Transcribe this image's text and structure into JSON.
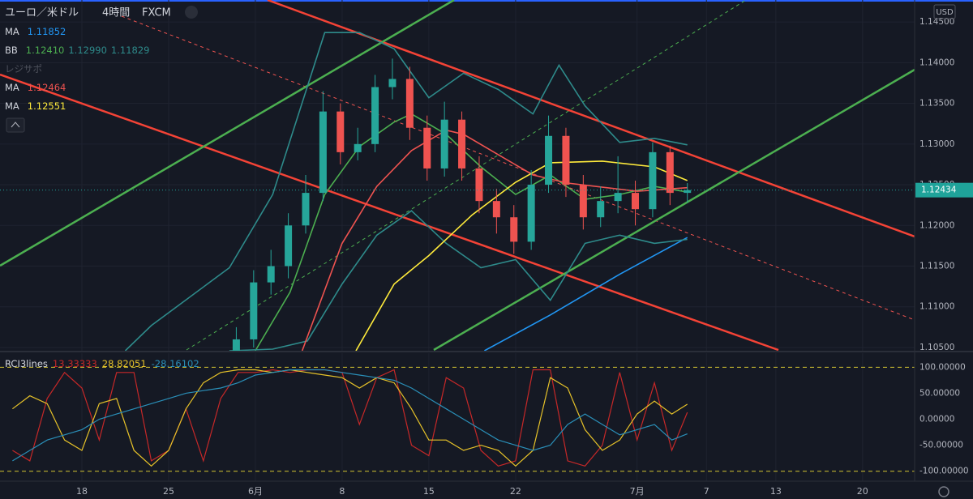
{
  "header": {
    "symbol": "ユーロ／米ドル",
    "interval": "4時間",
    "source": "FXCM",
    "currency": "USD"
  },
  "chart_data": [
    {
      "type": "candlestick",
      "xlim": [
        -4.72,
        48
      ],
      "xticks": [
        {
          "value": 0,
          "label": "18"
        },
        {
          "value": 5,
          "label": "25"
        },
        {
          "value": 10,
          "label": "6月"
        },
        {
          "value": 15,
          "label": "8"
        },
        {
          "value": 20,
          "label": "15"
        },
        {
          "value": 25,
          "label": "22"
        },
        {
          "value": 32,
          "label": "7月"
        },
        {
          "value": 36,
          "label": "7"
        },
        {
          "value": 40,
          "label": "13"
        },
        {
          "value": 45,
          "label": "20"
        }
      ],
      "ylim": [
        1.1046,
        1.1477
      ],
      "yticks": [
        {
          "value": 1.105,
          "label": "1.10500"
        },
        {
          "value": 1.11,
          "label": "1.11000"
        },
        {
          "value": 1.115,
          "label": "1.11500"
        },
        {
          "value": 1.12,
          "label": "1.12000"
        },
        {
          "value": 1.125,
          "label": "1.12500"
        },
        {
          "value": 1.13,
          "label": "1.13000"
        },
        {
          "value": 1.135,
          "label": "1.13500"
        },
        {
          "value": 1.14,
          "label": "1.14000"
        },
        {
          "value": 1.145,
          "label": "1.14500"
        }
      ],
      "grid": true,
      "up_color": "#26a69a",
      "down_color": "#ef5350",
      "candles": {
        "x": [
          8.9,
          9.9,
          10.9,
          11.9,
          12.9,
          13.9,
          14.9,
          15.9,
          16.9,
          17.9,
          18.9,
          19.9,
          20.9,
          21.9,
          22.9,
          23.9,
          24.9,
          25.9,
          26.9,
          27.9,
          28.9,
          29.9,
          30.9,
          31.9,
          32.9,
          33.9,
          34.9
        ],
        "open": [
          1.103,
          1.106,
          1.113,
          1.115,
          1.12,
          1.124,
          1.134,
          1.129,
          1.13,
          1.137,
          1.138,
          1.132,
          1.127,
          1.133,
          1.127,
          1.123,
          1.121,
          1.118,
          1.125,
          1.131,
          1.125,
          1.121,
          1.123,
          1.124,
          1.122,
          1.129,
          1.124
        ],
        "high": [
          1.1075,
          1.1145,
          1.117,
          1.1215,
          1.1262,
          1.1365,
          1.135,
          1.132,
          1.1385,
          1.1405,
          1.1395,
          1.1335,
          1.1352,
          1.134,
          1.1285,
          1.1245,
          1.1225,
          1.1268,
          1.1335,
          1.132,
          1.1262,
          1.1248,
          1.1285,
          1.1255,
          1.1302,
          1.1298,
          1.1252
        ],
        "low": [
          1.102,
          1.105,
          1.1115,
          1.1135,
          1.119,
          1.123,
          1.1275,
          1.128,
          1.129,
          1.1355,
          1.1305,
          1.1255,
          1.126,
          1.1255,
          1.1215,
          1.119,
          1.1165,
          1.117,
          1.124,
          1.1235,
          1.1195,
          1.1198,
          1.1215,
          1.12,
          1.121,
          1.1225,
          1.1228
        ],
        "close": [
          1.106,
          1.113,
          1.115,
          1.12,
          1.124,
          1.134,
          1.129,
          1.13,
          1.137,
          1.138,
          1.132,
          1.127,
          1.133,
          1.127,
          1.123,
          1.121,
          1.118,
          1.125,
          1.131,
          1.125,
          1.121,
          1.123,
          1.124,
          1.122,
          1.129,
          1.124,
          1.12434
        ]
      },
      "last_price": 1.12434,
      "last_price_color": "#1fa39a",
      "indicators": [
        {
          "name": "MA",
          "lines": [
            {
              "color": "#2196f3",
              "legend_value": "1.11852",
              "x": [
                23.2,
                27,
                31,
                34.9
              ],
              "values": [
                1.1046,
                1.109,
                1.114,
                1.11852
              ]
            }
          ]
        },
        {
          "name": "BB",
          "lines": [
            {
              "color": "#4caf50",
              "legend_value": "1.12410",
              "x": [
                10,
                12,
                14,
                16,
                18,
                19,
                21,
                23,
                25,
                27,
                29,
                31,
                33,
                34.9
              ],
              "values": [
                1.1046,
                1.1118,
                1.1238,
                1.1297,
                1.1327,
                1.1337,
                1.1312,
                1.1272,
                1.1238,
                1.1262,
                1.1232,
                1.1238,
                1.1248,
                1.1241
              ]
            },
            {
              "color": "#2e8b8b",
              "legend_value": "1.12990",
              "x": [
                2.5,
                4,
                8.5,
                11,
                14,
                16,
                18,
                20,
                22,
                24,
                26,
                27.5,
                29,
                31,
                33,
                34.9
              ],
              "values": [
                1.1046,
                1.1077,
                1.1148,
                1.1238,
                1.1437,
                1.1437,
                1.1417,
                1.1357,
                1.1387,
                1.1367,
                1.1337,
                1.1397,
                1.1347,
                1.1302,
                1.1307,
                1.1299
              ]
            },
            {
              "color": "#2e8b8b",
              "legend_value": "1.11829",
              "x": [
                8.5,
                11,
                13,
                15,
                17,
                19,
                21,
                23,
                25,
                27,
                29,
                31,
                33,
                34.9
              ],
              "values": [
                1.1046,
                1.1048,
                1.1058,
                1.1128,
                1.1188,
                1.1218,
                1.1178,
                1.1148,
                1.1158,
                1.1108,
                1.1178,
                1.1188,
                1.1178,
                1.11829
              ]
            }
          ]
        },
        {
          "name": "レジサポ",
          "hidden": true,
          "lines": []
        },
        {
          "name": "MA",
          "lines": [
            {
              "color": "#ef5350",
              "legend_value": "1.12464",
              "x": [
                12.7,
                15,
                17,
                19,
                21,
                22,
                24,
                26,
                28,
                30,
                32,
                34.9
              ],
              "values": [
                1.1046,
                1.1178,
                1.1248,
                1.1292,
                1.1317,
                1.1312,
                1.1287,
                1.1262,
                1.1252,
                1.1247,
                1.1242,
                1.12464
              ]
            }
          ]
        },
        {
          "name": "MA",
          "lines": [
            {
              "color": "#ffeb3b",
              "legend_value": "1.12551",
              "x": [
                15.8,
                18,
                20,
                22.5,
                25,
                27,
                30,
                33,
                34.9
              ],
              "values": [
                1.1046,
                1.1128,
                1.1163,
                1.1213,
                1.1253,
                1.1277,
                1.1279,
                1.1272,
                1.12551
              ]
            }
          ]
        }
      ]
    },
    {
      "type": "line",
      "title": "RCI3lines",
      "ylim": [
        -116,
        127
      ],
      "yticks": [
        {
          "value": 100,
          "label": "100.00000"
        },
        {
          "value": 50,
          "label": "50.00000"
        },
        {
          "value": 0,
          "label": "0.00000"
        },
        {
          "value": -50,
          "label": "-50.00000"
        },
        {
          "value": -100,
          "label": "-100.00000"
        }
      ],
      "levels": [
        100,
        -100
      ],
      "level_color": "#d4c431",
      "x": [
        -4,
        -3,
        -2,
        -1,
        0,
        1,
        2,
        3,
        4,
        5,
        6,
        7,
        8,
        9,
        10,
        11,
        12,
        13,
        14,
        15,
        16,
        17,
        18,
        19,
        20,
        21,
        22,
        23,
        24,
        25,
        26,
        27,
        28,
        29,
        30,
        31,
        32,
        33,
        34,
        34.9
      ],
      "series": [
        {
          "color": "#c62828",
          "values": [
            -60,
            -80,
            40,
            90,
            60,
            -40,
            90,
            90,
            -80,
            -60,
            20,
            -80,
            40,
            90,
            90,
            95,
            90,
            95,
            95,
            90,
            -10,
            80,
            95,
            -50,
            -70,
            80,
            60,
            -60,
            -90,
            -80,
            95,
            95,
            -80,
            -90,
            -50,
            90,
            -40,
            70,
            -60,
            13.33333
          ]
        },
        {
          "color": "#e6c229",
          "values": [
            20,
            45,
            30,
            -40,
            -60,
            30,
            40,
            -60,
            -90,
            -60,
            20,
            70,
            90,
            95,
            95,
            90,
            95,
            90,
            85,
            80,
            60,
            80,
            70,
            20,
            -40,
            -40,
            -60,
            -50,
            -60,
            -90,
            -60,
            80,
            60,
            -20,
            -60,
            -40,
            10,
            35,
            10,
            28.82051
          ]
        },
        {
          "color": "#2a8fb8",
          "values": [
            -80,
            -60,
            -40,
            -30,
            -20,
            0,
            10,
            20,
            30,
            40,
            50,
            55,
            60,
            70,
            85,
            90,
            95,
            95,
            95,
            90,
            85,
            80,
            75,
            60,
            40,
            20,
            0,
            -20,
            -40,
            -50,
            -60,
            -50,
            -10,
            10,
            -10,
            -30,
            -20,
            -10,
            -40,
            -28.16102
          ]
        }
      ]
    }
  ]
}
